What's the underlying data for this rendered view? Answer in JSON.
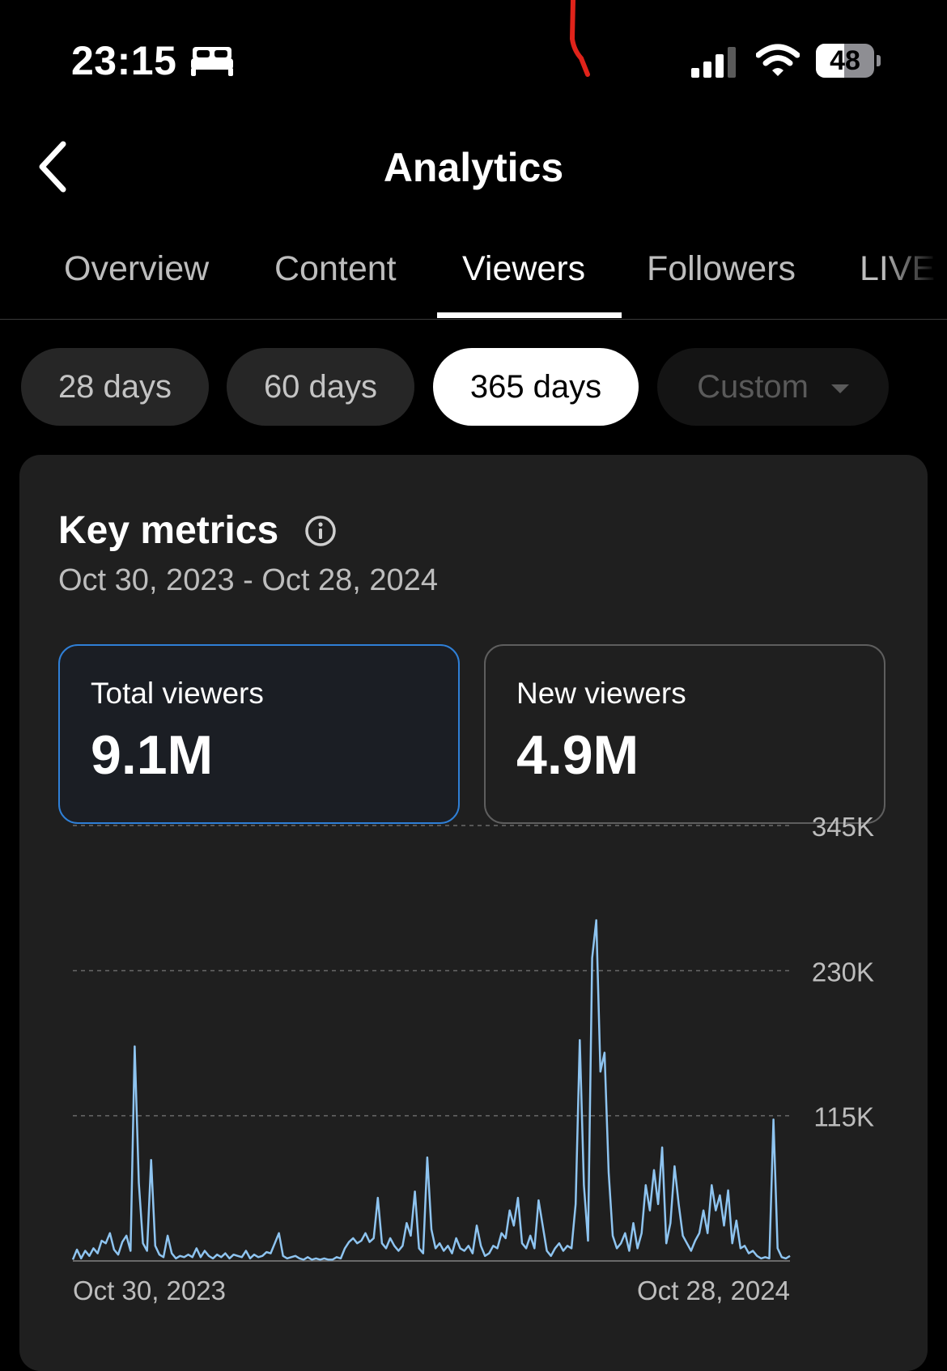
{
  "status_bar": {
    "time": "23:15",
    "battery_level": "48",
    "icons": [
      "sleep-icon",
      "signal-icon",
      "wifi-icon",
      "battery-icon"
    ]
  },
  "header": {
    "title": "Analytics",
    "back_icon": "chevron-left-icon"
  },
  "tabs": [
    {
      "label": "Overview",
      "active": false
    },
    {
      "label": "Content",
      "active": false
    },
    {
      "label": "Viewers",
      "active": true
    },
    {
      "label": "Followers",
      "active": false
    },
    {
      "label": "LIVE",
      "active": false
    }
  ],
  "range_chips": [
    {
      "label": "28 days",
      "state": "default"
    },
    {
      "label": "60 days",
      "state": "default"
    },
    {
      "label": "365 days",
      "state": "selected"
    },
    {
      "label": "Custom",
      "state": "disabled",
      "icon": "caret-down-icon"
    }
  ],
  "key_metrics": {
    "title": "Key metrics",
    "info_icon": "info-icon",
    "date_range": "Oct 30, 2023 - Oct 28, 2024",
    "cards": [
      {
        "label": "Total viewers",
        "value": "9.1M",
        "selected": true
      },
      {
        "label": "New viewers",
        "value": "4.9M",
        "selected": false
      }
    ]
  },
  "colors": {
    "accent_border": "#2f7fd6",
    "line": "#8ec4f0",
    "card_bg": "#1f1f1f"
  },
  "chart_data": {
    "type": "line",
    "series": [
      {
        "values": [
          1,
          9,
          2,
          8,
          4,
          10,
          6,
          16,
          14,
          22,
          9,
          5,
          15,
          20,
          8,
          170,
          62,
          14,
          8,
          80,
          12,
          5,
          3,
          20,
          6,
          2,
          4,
          3,
          5,
          3,
          10,
          3,
          8,
          4,
          2,
          5,
          3,
          6,
          2,
          5,
          4,
          3,
          8,
          2,
          5,
          3,
          4,
          7,
          6,
          14,
          22,
          4,
          2,
          3,
          4,
          2,
          1,
          3,
          1,
          2,
          1,
          2,
          1,
          1,
          3,
          2,
          10,
          15,
          18,
          14,
          16,
          22,
          15,
          18,
          50,
          14,
          10,
          18,
          12,
          8,
          12,
          30,
          20,
          55,
          10,
          6,
          82,
          25,
          10,
          14,
          8,
          12,
          6,
          18,
          10,
          8,
          12,
          6,
          28,
          12,
          4,
          6,
          12,
          10,
          22,
          18,
          40,
          28,
          50,
          14,
          10,
          20,
          10,
          48,
          28,
          8,
          4,
          10,
          14,
          8,
          12,
          10,
          45,
          175,
          60,
          16,
          240,
          270,
          150,
          165,
          70,
          20,
          10,
          14,
          22,
          8,
          30,
          10,
          22,
          60,
          40,
          72,
          45,
          90,
          14,
          30,
          75,
          45,
          20,
          14,
          8,
          16,
          22,
          40,
          22,
          60,
          40,
          52,
          28,
          56,
          14,
          32,
          10,
          12,
          6,
          8,
          4,
          2,
          3,
          2,
          112,
          10,
          3,
          2,
          4
        ]
      }
    ],
    "x_labels": [
      "Oct 30, 2023",
      "Oct 28, 2024"
    ],
    "y_ticks": [
      {
        "value": 115,
        "label": "115K"
      },
      {
        "value": 230,
        "label": "230K"
      },
      {
        "value": 345,
        "label": "345K"
      }
    ],
    "ylim": [
      0,
      345
    ],
    "y_unit": "thousands of viewers",
    "grid": "dashed horizontal"
  }
}
